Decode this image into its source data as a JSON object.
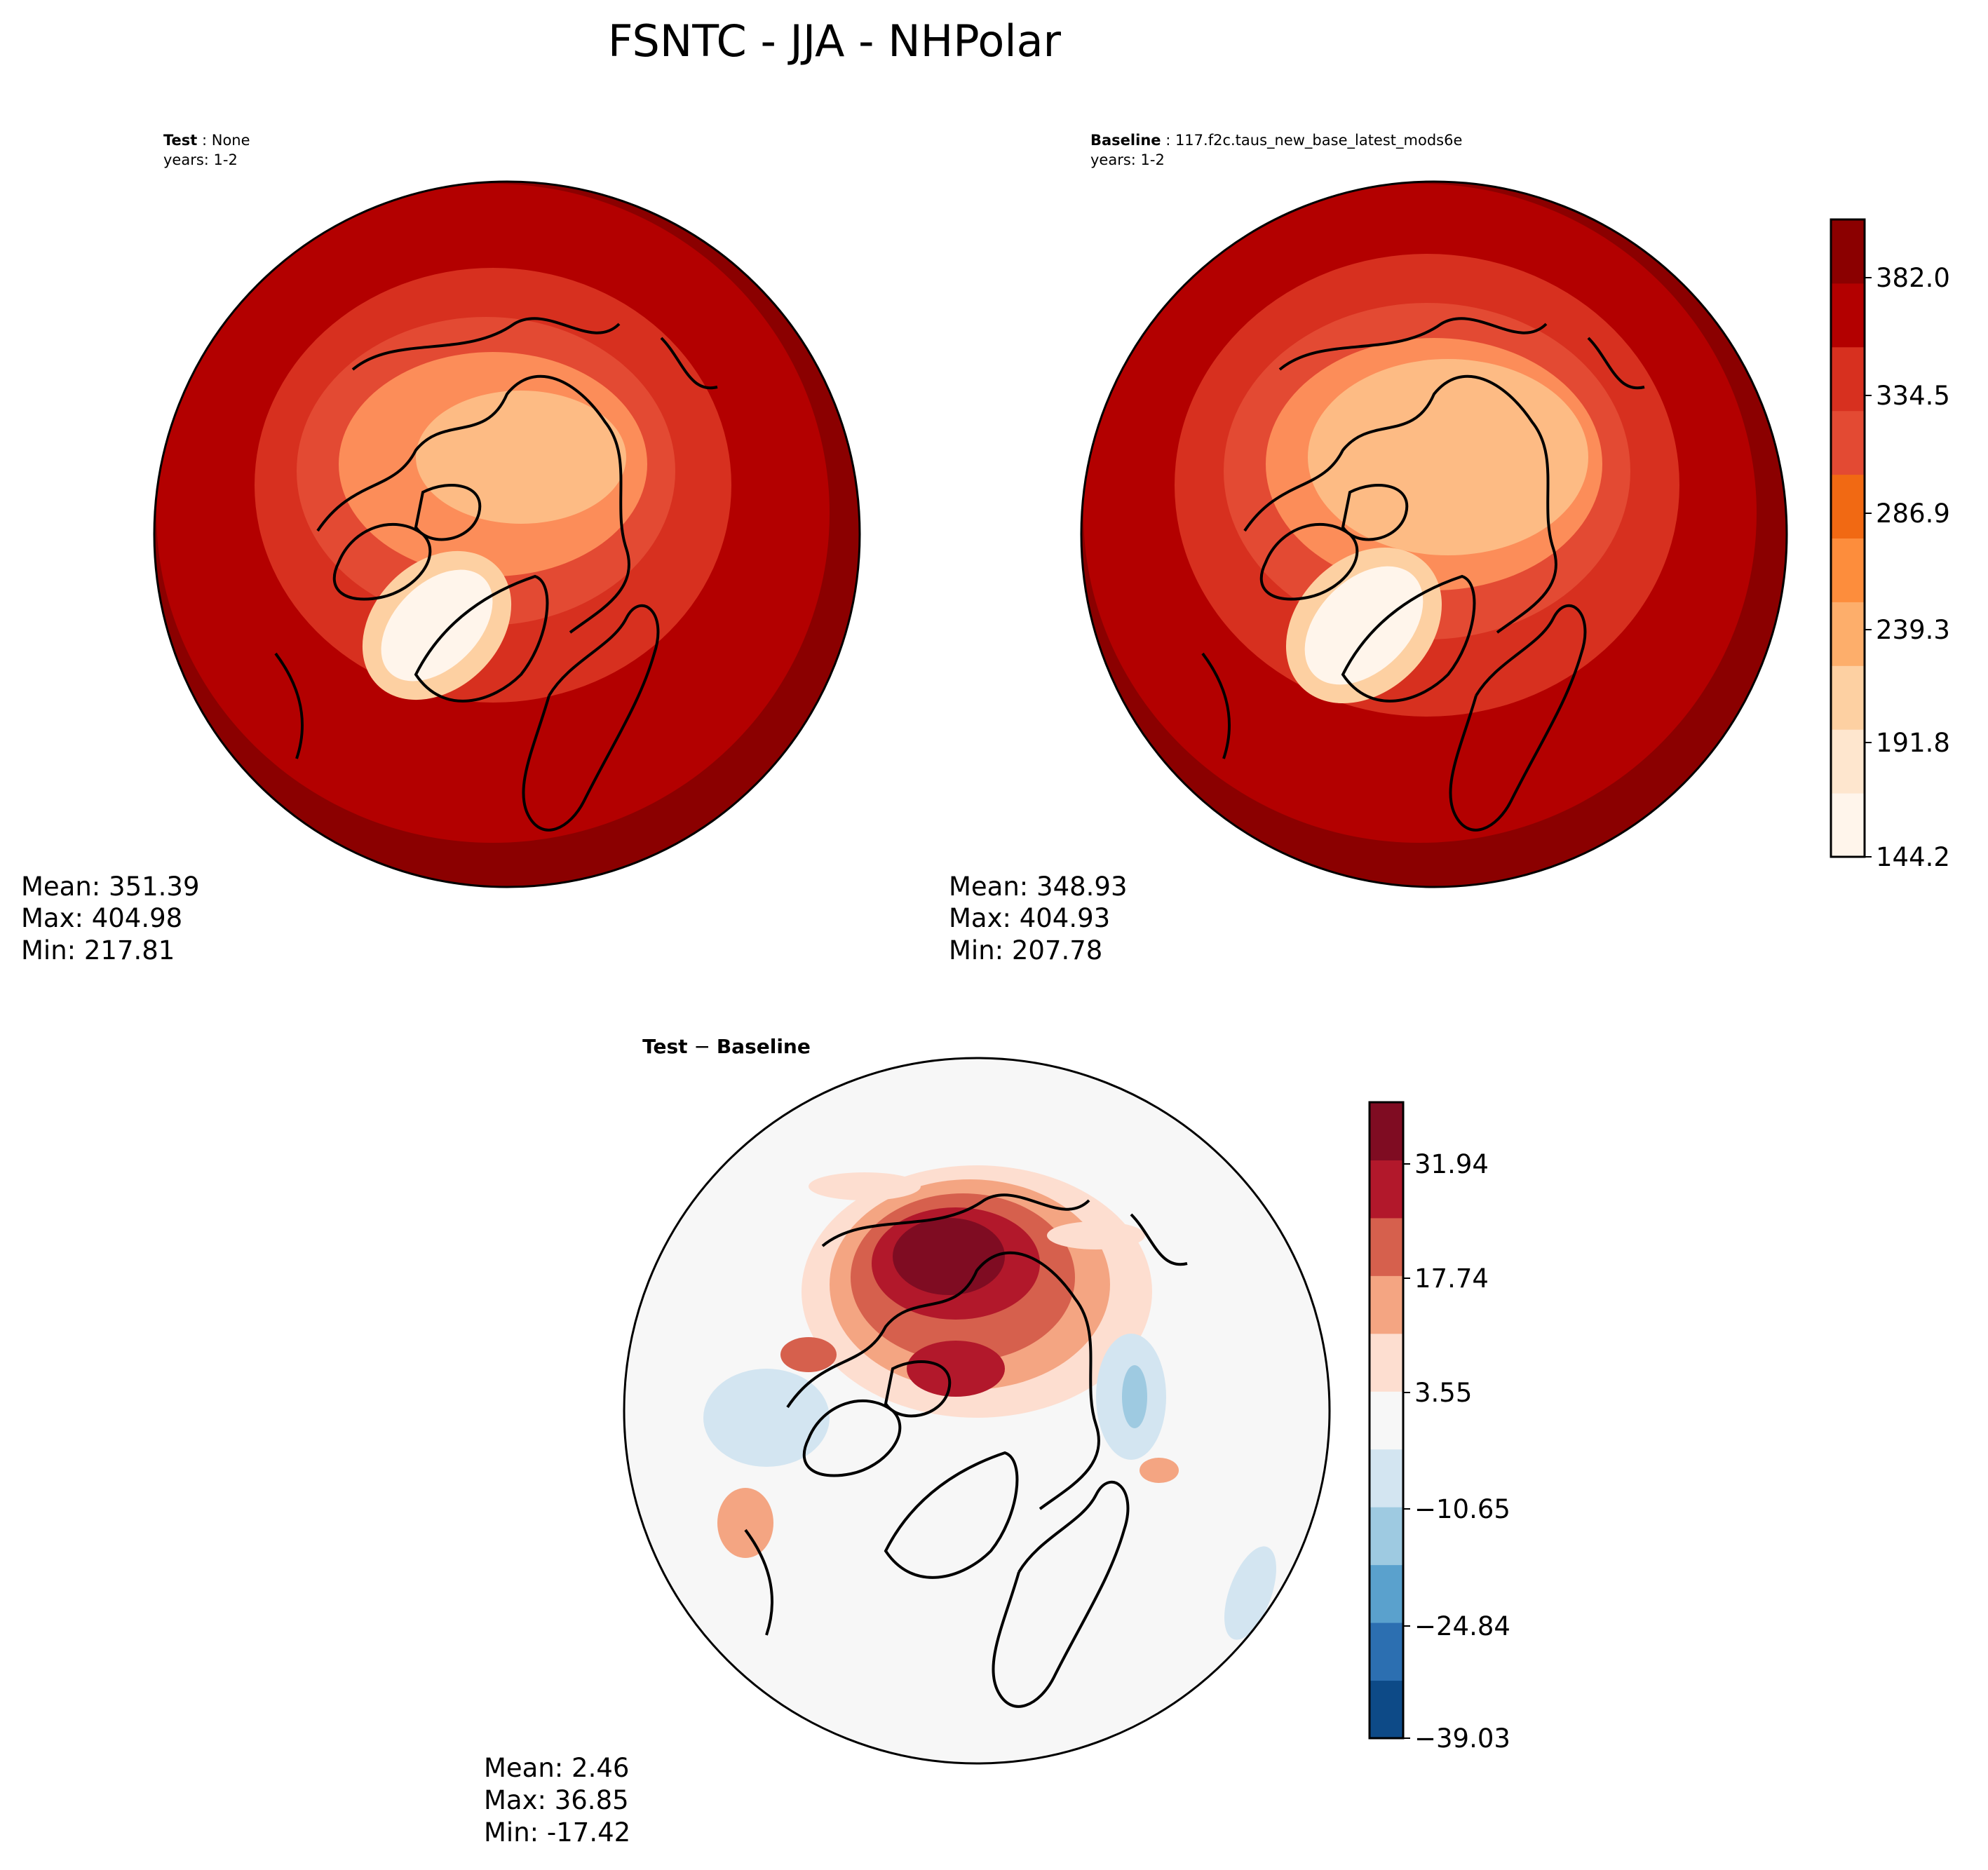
{
  "title": "FSNTC - JJA - NHPolar",
  "chart_data": [
    {
      "type": "heatmap",
      "projection": "north-polar-stereographic",
      "label_bold": "Test",
      "label_rest": " : None",
      "years": "years: 1-2",
      "stats": {
        "mean": "Mean: 351.39",
        "max": "Max: 404.98",
        "min": "Min: 217.81"
      },
      "colormap": "OrRd",
      "colorbar": "colorbar-1"
    },
    {
      "type": "heatmap",
      "projection": "north-polar-stereographic",
      "label_bold": "Baseline",
      "label_rest": " : 117.f2c.taus_new_base_latest_mods6e",
      "years": "years: 1-2",
      "stats": {
        "mean": "Mean: 348.93",
        "max": "Max: 404.93",
        "min": "Min: 207.78"
      },
      "colormap": "OrRd",
      "colorbar": "colorbar-1"
    },
    {
      "type": "heatmap",
      "projection": "north-polar-stereographic",
      "label_bold": "Test",
      "label_sep": " − ",
      "label_bold2": "Baseline",
      "stats": {
        "mean": "Mean:  2.46",
        "max": "Max: 36.85",
        "min": "Min: -17.42"
      },
      "colormap": "RdBu_r",
      "colorbar": "colorbar-2"
    }
  ],
  "colorbars": {
    "colorbar-1": {
      "ticks": [
        "382.0",
        "334.5",
        "286.9",
        "239.3",
        "191.8",
        "144.2"
      ],
      "colors": [
        "#fff5eb",
        "#fee6ce",
        "#fdd0a2",
        "#fdae6b",
        "#fd8d3c",
        "#f16913",
        "#e34a33",
        "#d7301f",
        "#b30000",
        "#8b0000"
      ]
    },
    "colorbar-2": {
      "ticks": [
        "31.94",
        "17.74",
        "3.55",
        "−10.65",
        "−24.84",
        "−39.03"
      ],
      "colors": [
        "#0d4a87",
        "#2c6fb1",
        "#5aa1cd",
        "#9ecae1",
        "#d3e5f1",
        "#f7f7f7",
        "#fdded0",
        "#f4a582",
        "#d6604d",
        "#b2182b",
        "#7f0c22"
      ]
    }
  }
}
